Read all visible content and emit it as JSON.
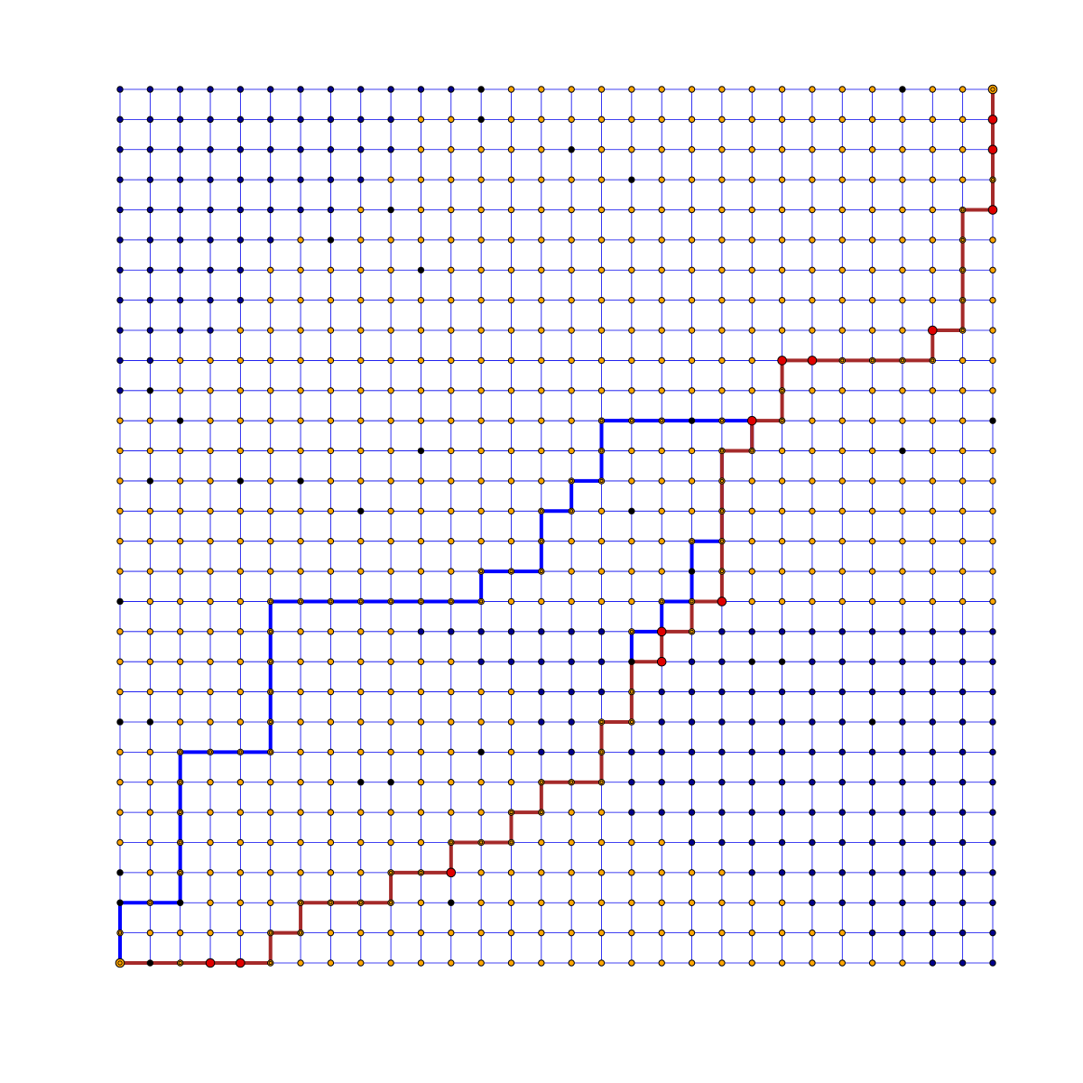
{
  "chart_data": {
    "type": "lattice-paths",
    "grid_size": 30,
    "colors": {
      "grid_line": "#0000ee",
      "node_blue": "#00008b",
      "node_orange": "#ffa500",
      "node_black": "#000000",
      "node_red": "#e00000",
      "path_blue": "#0000ff",
      "path_red": "#a52a2a"
    },
    "blue_path": [
      [
        0,
        0
      ],
      [
        0,
        2
      ],
      [
        2,
        2
      ],
      [
        2,
        7
      ],
      [
        5,
        7
      ],
      [
        5,
        12
      ],
      [
        12,
        12
      ],
      [
        12,
        13
      ],
      [
        14,
        13
      ],
      [
        14,
        15
      ],
      [
        15,
        15
      ],
      [
        15,
        16
      ],
      [
        16,
        16
      ],
      [
        16,
        18
      ],
      [
        21,
        18
      ],
      [
        21,
        17
      ],
      [
        20,
        17
      ],
      [
        20,
        14
      ],
      [
        19,
        14
      ],
      [
        19,
        12
      ],
      [
        18,
        12
      ],
      [
        18,
        11
      ],
      [
        17,
        11
      ],
      [
        17,
        10
      ]
    ],
    "red_path": [
      [
        0,
        0
      ],
      [
        5,
        0
      ],
      [
        5,
        1
      ],
      [
        6,
        1
      ],
      [
        6,
        2
      ],
      [
        9,
        2
      ],
      [
        9,
        3
      ],
      [
        11,
        3
      ],
      [
        11,
        4
      ],
      [
        13,
        4
      ],
      [
        13,
        5
      ],
      [
        14,
        5
      ],
      [
        14,
        6
      ],
      [
        16,
        6
      ],
      [
        16,
        8
      ],
      [
        17,
        8
      ],
      [
        17,
        10
      ],
      [
        18,
        10
      ],
      [
        18,
        11
      ],
      [
        19,
        11
      ],
      [
        19,
        12
      ],
      [
        20,
        12
      ],
      [
        20,
        17
      ],
      [
        21,
        17
      ],
      [
        21,
        18
      ],
      [
        22,
        18
      ],
      [
        22,
        20
      ],
      [
        27,
        20
      ],
      [
        27,
        21
      ],
      [
        28,
        21
      ],
      [
        28,
        25
      ],
      [
        29,
        25
      ],
      [
        29,
        29
      ]
    ],
    "red_nodes": [
      [
        3,
        0
      ],
      [
        4,
        0
      ],
      [
        11,
        3
      ],
      [
        18,
        10
      ],
      [
        18,
        11
      ],
      [
        20,
        12
      ],
      [
        21,
        18
      ],
      [
        22,
        20
      ],
      [
        23,
        20
      ],
      [
        27,
        21
      ],
      [
        29,
        25
      ],
      [
        29,
        27
      ],
      [
        29,
        28
      ]
    ],
    "black_nodes": [
      [
        1,
        0
      ],
      [
        0,
        2
      ],
      [
        2,
        2
      ],
      [
        0,
        3
      ],
      [
        11,
        2
      ],
      [
        9,
        6
      ],
      [
        0,
        8
      ],
      [
        1,
        8
      ],
      [
        12,
        7
      ],
      [
        0,
        12
      ],
      [
        8,
        6
      ],
      [
        17,
        10
      ],
      [
        19,
        13
      ],
      [
        21,
        10
      ],
      [
        25,
        8
      ],
      [
        22,
        10
      ],
      [
        26,
        17
      ],
      [
        6,
        16
      ],
      [
        10,
        17
      ],
      [
        4,
        16
      ],
      [
        1,
        16
      ],
      [
        2,
        18
      ],
      [
        1,
        19
      ],
      [
        8,
        15
      ],
      [
        17,
        15
      ],
      [
        10,
        23
      ],
      [
        9,
        25
      ],
      [
        7,
        24
      ],
      [
        12,
        29
      ],
      [
        12,
        28
      ],
      [
        15,
        27
      ],
      [
        17,
        26
      ],
      [
        19,
        18
      ],
      [
        29,
        18
      ],
      [
        26,
        29
      ]
    ],
    "blue_region_left": [
      11,
      9,
      9,
      8,
      7,
      5,
      4,
      4,
      3,
      1,
      1
    ],
    "blue_region_right": [
      27,
      25,
      23,
      21,
      19,
      17,
      15,
      14,
      14,
      14,
      12,
      10
    ]
  }
}
